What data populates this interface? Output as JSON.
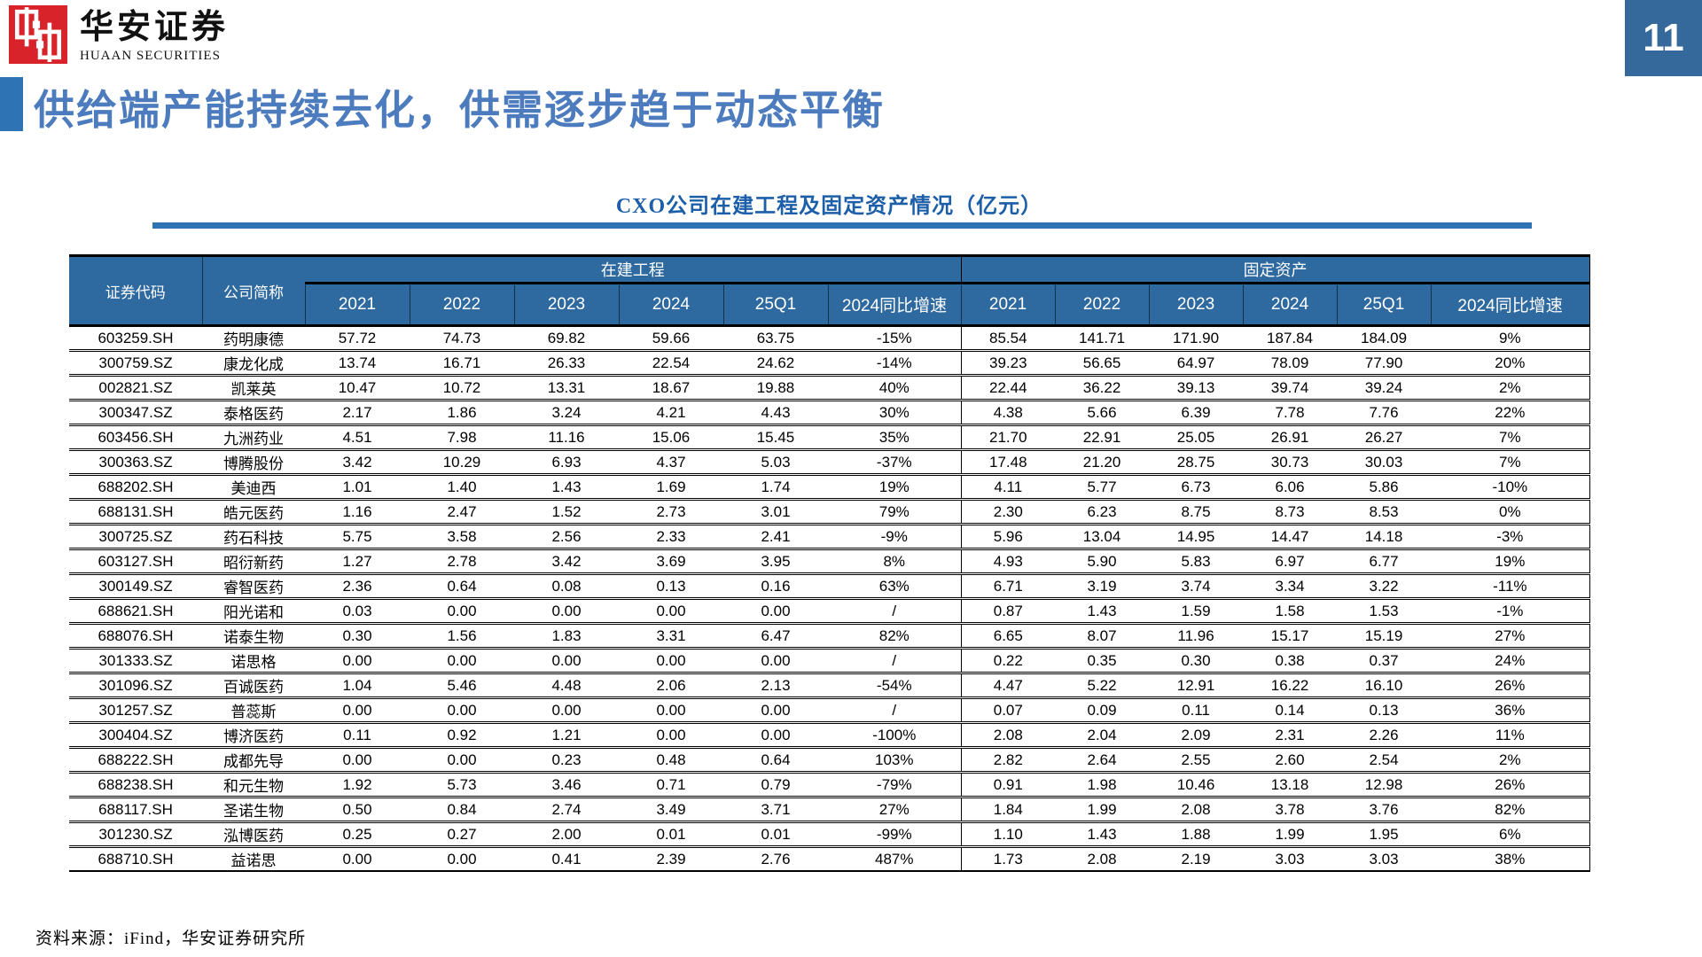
{
  "header": {
    "logo_cn": "华安证券",
    "logo_en": "HUAAN SECURITIES",
    "page_number": "11",
    "title": "供给端产能持续去化，供需逐步趋于动态平衡"
  },
  "table": {
    "title": "CXO公司在建工程及固定资产情况（亿元）",
    "headers": {
      "code": "证券代码",
      "name": "公司简称",
      "group_cip": "在建工程",
      "group_fa": "固定资产"
    },
    "year_headers": [
      "2021",
      "2022",
      "2023",
      "2024",
      "25Q1",
      "2024同比增速"
    ],
    "rows": [
      {
        "code": "603259.SH",
        "name": "药明康德",
        "cip": [
          "57.72",
          "74.73",
          "69.82",
          "59.66",
          "63.75"
        ],
        "cip_growth": "-15%",
        "fa": [
          "85.54",
          "141.71",
          "171.90",
          "187.84",
          "184.09"
        ],
        "fa_growth": "9%"
      },
      {
        "code": "300759.SZ",
        "name": "康龙化成",
        "cip": [
          "13.74",
          "16.71",
          "26.33",
          "22.54",
          "24.62"
        ],
        "cip_growth": "-14%",
        "fa": [
          "39.23",
          "56.65",
          "64.97",
          "78.09",
          "77.90"
        ],
        "fa_growth": "20%"
      },
      {
        "code": "002821.SZ",
        "name": "凯莱英",
        "cip": [
          "10.47",
          "10.72",
          "13.31",
          "18.67",
          "19.88"
        ],
        "cip_growth": "40%",
        "fa": [
          "22.44",
          "36.22",
          "39.13",
          "39.74",
          "39.24"
        ],
        "fa_growth": "2%"
      },
      {
        "code": "300347.SZ",
        "name": "泰格医药",
        "cip": [
          "2.17",
          "1.86",
          "3.24",
          "4.21",
          "4.43"
        ],
        "cip_growth": "30%",
        "fa": [
          "4.38",
          "5.66",
          "6.39",
          "7.78",
          "7.76"
        ],
        "fa_growth": "22%"
      },
      {
        "code": "603456.SH",
        "name": "九洲药业",
        "cip": [
          "4.51",
          "7.98",
          "11.16",
          "15.06",
          "15.45"
        ],
        "cip_growth": "35%",
        "fa": [
          "21.70",
          "22.91",
          "25.05",
          "26.91",
          "26.27"
        ],
        "fa_growth": "7%"
      },
      {
        "code": "300363.SZ",
        "name": "博腾股份",
        "cip": [
          "3.42",
          "10.29",
          "6.93",
          "4.37",
          "5.03"
        ],
        "cip_growth": "-37%",
        "fa": [
          "17.48",
          "21.20",
          "28.75",
          "30.73",
          "30.03"
        ],
        "fa_growth": "7%"
      },
      {
        "code": "688202.SH",
        "name": "美迪西",
        "cip": [
          "1.01",
          "1.40",
          "1.43",
          "1.69",
          "1.74"
        ],
        "cip_growth": "19%",
        "fa": [
          "4.11",
          "5.77",
          "6.73",
          "6.06",
          "5.86"
        ],
        "fa_growth": "-10%"
      },
      {
        "code": "688131.SH",
        "name": "皓元医药",
        "cip": [
          "1.16",
          "2.47",
          "1.52",
          "2.73",
          "3.01"
        ],
        "cip_growth": "79%",
        "fa": [
          "2.30",
          "6.23",
          "8.75",
          "8.73",
          "8.53"
        ],
        "fa_growth": "0%"
      },
      {
        "code": "300725.SZ",
        "name": "药石科技",
        "cip": [
          "5.75",
          "3.58",
          "2.56",
          "2.33",
          "2.41"
        ],
        "cip_growth": "-9%",
        "fa": [
          "5.96",
          "13.04",
          "14.95",
          "14.47",
          "14.18"
        ],
        "fa_growth": "-3%"
      },
      {
        "code": "603127.SH",
        "name": "昭衍新药",
        "cip": [
          "1.27",
          "2.78",
          "3.42",
          "3.69",
          "3.95"
        ],
        "cip_growth": "8%",
        "fa": [
          "4.93",
          "5.90",
          "5.83",
          "6.97",
          "6.77"
        ],
        "fa_growth": "19%"
      },
      {
        "code": "300149.SZ",
        "name": "睿智医药",
        "cip": [
          "2.36",
          "0.64",
          "0.08",
          "0.13",
          "0.16"
        ],
        "cip_growth": "63%",
        "fa": [
          "6.71",
          "3.19",
          "3.74",
          "3.34",
          "3.22"
        ],
        "fa_growth": "-11%"
      },
      {
        "code": "688621.SH",
        "name": "阳光诺和",
        "cip": [
          "0.03",
          "0.00",
          "0.00",
          "0.00",
          "0.00"
        ],
        "cip_growth": "/",
        "fa": [
          "0.87",
          "1.43",
          "1.59",
          "1.58",
          "1.53"
        ],
        "fa_growth": "-1%"
      },
      {
        "code": "688076.SH",
        "name": "诺泰生物",
        "cip": [
          "0.30",
          "1.56",
          "1.83",
          "3.31",
          "6.47"
        ],
        "cip_growth": "82%",
        "fa": [
          "6.65",
          "8.07",
          "11.96",
          "15.17",
          "15.19"
        ],
        "fa_growth": "27%"
      },
      {
        "code": "301333.SZ",
        "name": "诺思格",
        "cip": [
          "0.00",
          "0.00",
          "0.00",
          "0.00",
          "0.00"
        ],
        "cip_growth": "/",
        "fa": [
          "0.22",
          "0.35",
          "0.30",
          "0.38",
          "0.37"
        ],
        "fa_growth": "24%"
      },
      {
        "code": "301096.SZ",
        "name": "百诚医药",
        "cip": [
          "1.04",
          "5.46",
          "4.48",
          "2.06",
          "2.13"
        ],
        "cip_growth": "-54%",
        "fa": [
          "4.47",
          "5.22",
          "12.91",
          "16.22",
          "16.10"
        ],
        "fa_growth": "26%"
      },
      {
        "code": "301257.SZ",
        "name": "普蕊斯",
        "cip": [
          "0.00",
          "0.00",
          "0.00",
          "0.00",
          "0.00"
        ],
        "cip_growth": "/",
        "fa": [
          "0.07",
          "0.09",
          "0.11",
          "0.14",
          "0.13"
        ],
        "fa_growth": "36%"
      },
      {
        "code": "300404.SZ",
        "name": "博济医药",
        "cip": [
          "0.11",
          "0.92",
          "1.21",
          "0.00",
          "0.00"
        ],
        "cip_growth": "-100%",
        "fa": [
          "2.08",
          "2.04",
          "2.09",
          "2.31",
          "2.26"
        ],
        "fa_growth": "11%"
      },
      {
        "code": "688222.SH",
        "name": "成都先导",
        "cip": [
          "0.00",
          "0.00",
          "0.23",
          "0.48",
          "0.64"
        ],
        "cip_growth": "103%",
        "fa": [
          "2.82",
          "2.64",
          "2.55",
          "2.60",
          "2.54"
        ],
        "fa_growth": "2%"
      },
      {
        "code": "688238.SH",
        "name": "和元生物",
        "cip": [
          "1.92",
          "5.73",
          "3.46",
          "0.71",
          "0.79"
        ],
        "cip_growth": "-79%",
        "fa": [
          "0.91",
          "1.98",
          "10.46",
          "13.18",
          "12.98"
        ],
        "fa_growth": "26%"
      },
      {
        "code": "688117.SH",
        "name": "圣诺生物",
        "cip": [
          "0.50",
          "0.84",
          "2.74",
          "3.49",
          "3.71"
        ],
        "cip_growth": "27%",
        "fa": [
          "1.84",
          "1.99",
          "2.08",
          "3.78",
          "3.76"
        ],
        "fa_growth": "82%"
      },
      {
        "code": "301230.SZ",
        "name": "泓博医药",
        "cip": [
          "0.25",
          "0.27",
          "2.00",
          "0.01",
          "0.01"
        ],
        "cip_growth": "-99%",
        "fa": [
          "1.10",
          "1.43",
          "1.88",
          "1.99",
          "1.95"
        ],
        "fa_growth": "6%"
      },
      {
        "code": "688710.SH",
        "name": "益诺思",
        "cip": [
          "0.00",
          "0.00",
          "0.41",
          "2.39",
          "2.76"
        ],
        "cip_growth": "487%",
        "fa": [
          "1.73",
          "2.08",
          "2.19",
          "3.03",
          "3.03"
        ],
        "fa_growth": "38%"
      }
    ]
  },
  "footer": {
    "source": "资料来源：iFind，华安证券研究所"
  },
  "colors": {
    "logo_red": "#D8232A",
    "page_box_blue": "#35689B",
    "accent_blue": "#2E74B5",
    "title_blue": "#4C7CBE",
    "table_title_blue": "#1C5FA8",
    "table_header_blue": "#2E699F"
  }
}
